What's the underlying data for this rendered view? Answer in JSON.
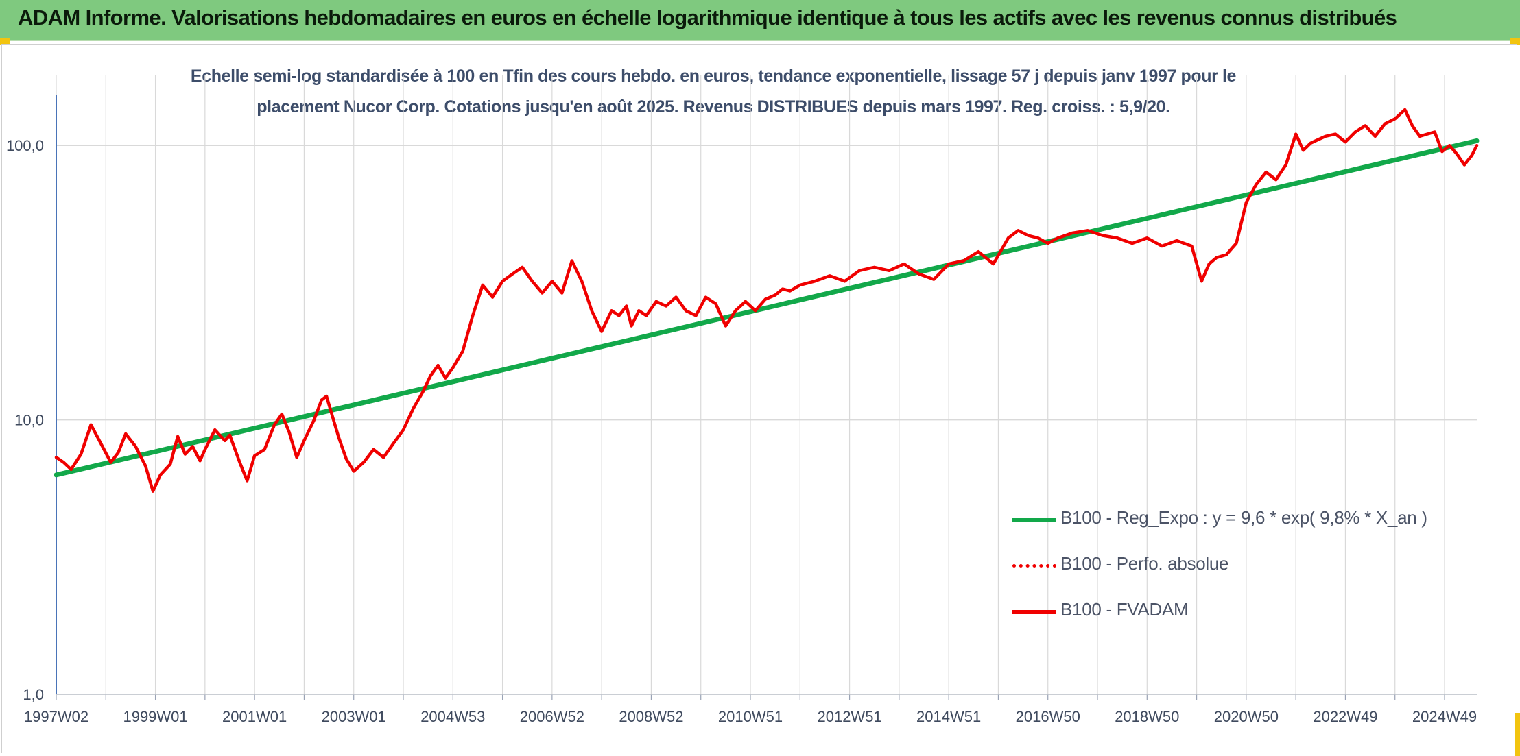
{
  "banner": {
    "title": "ADAM Informe. Valorisations hebdomadaires en euros en échelle logarithmique identique à tous les actifs avec les revenus connus distribués"
  },
  "colors": {
    "banner_bg": "#7fc97f",
    "trend": "#12a84a",
    "perf": "#f00000",
    "fvadam": "#f00000",
    "grid": "#d9d9d9",
    "axis": "#4a74b8",
    "text": "#3d4d6a"
  },
  "chart_data": {
    "type": "line",
    "title_lines": [
      "Echelle semi-log standardisée à 100 en Tfin des cours hebdo. en euros, tendance exponentielle, lissage 57 j depuis janv 1997 pour le",
      "placement Nucor Corp. Cotations jusqu'en août 2025. Revenus DISTRIBUES depuis mars 1997. Reg. croiss. : 5,9/20."
    ],
    "y_scale": "log",
    "ylim": [
      1,
      180
    ],
    "y_ticks": [
      {
        "value": 1,
        "label": "1,0"
      },
      {
        "value": 10,
        "label": "10,0"
      },
      {
        "value": 100,
        "label": "100,0"
      }
    ],
    "xlim": [
      1997.0,
      2025.65
    ],
    "x_ticks": [
      {
        "value": 1997.0,
        "label": "1997W02"
      },
      {
        "value": 1999.0,
        "label": "1999W01"
      },
      {
        "value": 2001.0,
        "label": "2001W01"
      },
      {
        "value": 2003.0,
        "label": "2003W01"
      },
      {
        "value": 2005.0,
        "label": "2004W53"
      },
      {
        "value": 2007.0,
        "label": "2006W52"
      },
      {
        "value": 2009.0,
        "label": "2008W52"
      },
      {
        "value": 2011.0,
        "label": "2010W51"
      },
      {
        "value": 2013.0,
        "label": "2012W51"
      },
      {
        "value": 2015.0,
        "label": "2014W51"
      },
      {
        "value": 2017.0,
        "label": "2016W50"
      },
      {
        "value": 2019.0,
        "label": "2018W50"
      },
      {
        "value": 2021.0,
        "label": "2020W50"
      },
      {
        "value": 2023.0,
        "label": "2022W49"
      },
      {
        "value": 2025.0,
        "label": "2024W49"
      }
    ],
    "legend": {
      "position": "bottom-right",
      "entries": [
        {
          "key": "trend",
          "label": "B100 - Reg_Expo : y = 9,6 * exp( 9,8% *  X_an )",
          "style": "solid"
        },
        {
          "key": "perf",
          "label": "B100 - Perfo. absolue",
          "style": "dotted"
        },
        {
          "key": "fvadam",
          "label": "B100 - FVADAM",
          "style": "solid"
        }
      ]
    },
    "series": [
      {
        "key": "trend",
        "name": "B100 - Reg_Expo : y = 9,6 * exp( 9,8% *  X_an )",
        "x": [
          1997.0,
          2025.65
        ],
        "y": [
          6.3,
          104
        ]
      },
      {
        "key": "fvadam",
        "name": "B100 - FVADAM",
        "x": [
          1997.0,
          1997.15,
          1997.3,
          1997.5,
          1997.7,
          1997.9,
          1998.1,
          1998.25,
          1998.4,
          1998.6,
          1998.8,
          1998.95,
          1999.1,
          1999.3,
          1999.45,
          1999.6,
          1999.75,
          1999.9,
          2000.0,
          2000.2,
          2000.4,
          2000.5,
          2000.7,
          2000.85,
          2001.0,
          2001.2,
          2001.4,
          2001.55,
          2001.7,
          2001.85,
          2002.0,
          2002.2,
          2002.35,
          2002.45,
          2002.55,
          2002.7,
          2002.85,
          2003.0,
          2003.2,
          2003.4,
          2003.6,
          2003.8,
          2004.0,
          2004.2,
          2004.4,
          2004.55,
          2004.7,
          2004.85,
          2005.0,
          2005.2,
          2005.4,
          2005.6,
          2005.8,
          2006.0,
          2006.2,
          2006.4,
          2006.6,
          2006.8,
          2007.0,
          2007.2,
          2007.4,
          2007.6,
          2007.8,
          2008.0,
          2008.2,
          2008.35,
          2008.5,
          2008.6,
          2008.75,
          2008.9,
          2009.1,
          2009.3,
          2009.5,
          2009.7,
          2009.9,
          2010.1,
          2010.3,
          2010.5,
          2010.7,
          2010.9,
          2011.1,
          2011.3,
          2011.5,
          2011.65,
          2011.8,
          2012.0,
          2012.3,
          2012.6,
          2012.9,
          2013.2,
          2013.5,
          2013.8,
          2014.1,
          2014.4,
          2014.7,
          2015.0,
          2015.3,
          2015.6,
          2015.9,
          2016.2,
          2016.4,
          2016.6,
          2016.8,
          2017.0,
          2017.2,
          2017.5,
          2017.8,
          2018.1,
          2018.4,
          2018.7,
          2019.0,
          2019.3,
          2019.6,
          2019.9,
          2020.1,
          2020.25,
          2020.4,
          2020.6,
          2020.8,
          2021.0,
          2021.2,
          2021.4,
          2021.6,
          2021.8,
          2022.0,
          2022.15,
          2022.3,
          2022.45,
          2022.6,
          2022.8,
          2023.0,
          2023.2,
          2023.4,
          2023.6,
          2023.8,
          2024.0,
          2024.2,
          2024.35,
          2024.5,
          2024.65,
          2024.8,
          2024.95,
          2025.1,
          2025.25,
          2025.4,
          2025.55,
          2025.65
        ],
        "y": [
          7.3,
          7.0,
          6.6,
          7.5,
          9.6,
          8.2,
          7.0,
          7.6,
          8.9,
          8.0,
          6.8,
          5.5,
          6.3,
          6.9,
          8.7,
          7.5,
          8.0,
          7.1,
          7.8,
          9.2,
          8.4,
          8.8,
          7.0,
          6.0,
          7.4,
          7.8,
          9.6,
          10.5,
          9.0,
          7.3,
          8.4,
          10.0,
          11.8,
          12.2,
          10.6,
          8.6,
          7.2,
          6.5,
          7.0,
          7.8,
          7.3,
          8.2,
          9.2,
          11.0,
          12.7,
          14.5,
          15.8,
          14.2,
          15.5,
          17.8,
          24.0,
          31.0,
          28.0,
          32.0,
          34.0,
          36.0,
          32.0,
          29.0,
          32.0,
          29.0,
          38.0,
          32.0,
          25.0,
          21.0,
          25.0,
          24.0,
          26.0,
          22.0,
          25.0,
          24.0,
          27.0,
          26.0,
          28.0,
          25.0,
          24.0,
          28.0,
          26.5,
          22.0,
          25.0,
          27.0,
          25.0,
          27.5,
          28.5,
          30.0,
          29.5,
          31.0,
          32.0,
          33.5,
          32.0,
          35.0,
          36.0,
          35.0,
          37.0,
          34.0,
          32.5,
          37.0,
          38.0,
          41.0,
          37.0,
          46.0,
          49.0,
          47.0,
          46.0,
          44.0,
          46.0,
          48.0,
          49.0,
          47.0,
          46.0,
          44.0,
          46.0,
          43.0,
          45.0,
          43.0,
          32.0,
          37.0,
          39.0,
          40.0,
          44.0,
          62.0,
          72.0,
          80.0,
          75.0,
          85.0,
          110.0,
          96.0,
          102.0,
          105.0,
          108.0,
          110.0,
          103.0,
          112.0,
          118.0,
          108.0,
          120.0,
          125.0,
          135.0,
          118.0,
          108.0,
          110.0,
          112.0,
          95.0,
          100.0,
          93.0,
          85.0,
          92.0,
          100.0
        ]
      }
    ]
  }
}
